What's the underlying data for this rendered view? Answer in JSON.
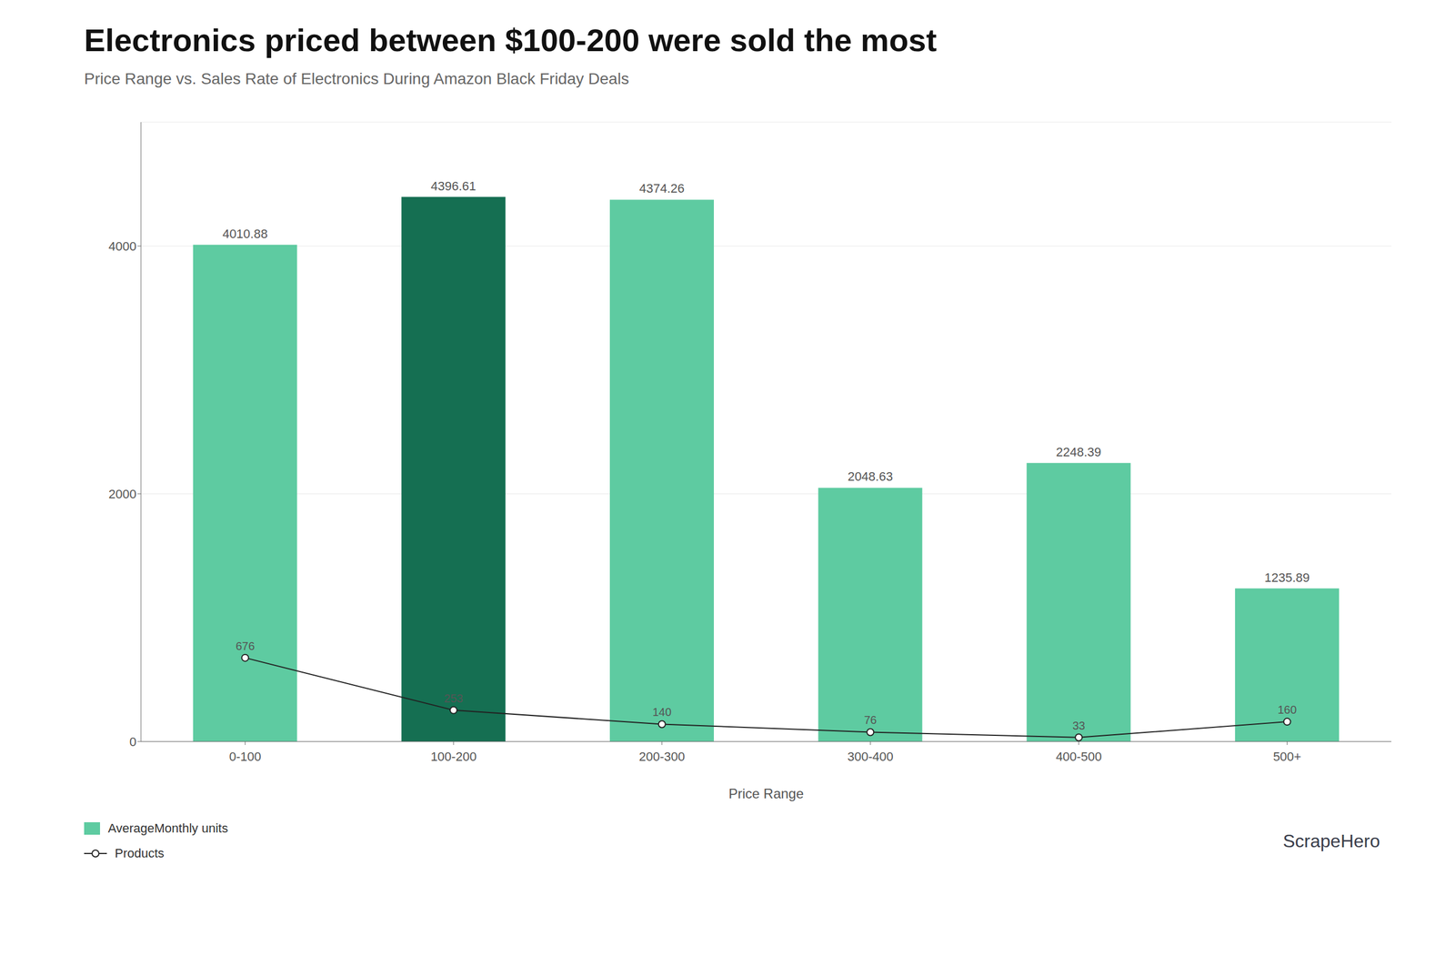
{
  "chart_data": {
    "type": "bar",
    "title": "Electronics priced between $100-200 were sold the most",
    "subtitle": "Price Range vs. Sales Rate of  Electronics During Amazon Black Friday Deals",
    "x_label": "Price Range",
    "categories": [
      "0-100",
      "100-200",
      "200-300",
      "300-400",
      "400-500",
      "500+"
    ],
    "series": [
      {
        "name": "AverageMonthly units",
        "type": "bar",
        "color": "#5ecba1",
        "colors": [
          "#5ecba1",
          "#156f52",
          "#5ecba1",
          "#5ecba1",
          "#5ecba1",
          "#5ecba1"
        ],
        "values": [
          4010.88,
          4396.61,
          4374.26,
          2048.63,
          2248.39,
          1235.89
        ],
        "data_labels": true
      },
      {
        "name": "Products",
        "type": "line",
        "color": "#222222",
        "marker": "circle",
        "values": [
          676,
          253,
          140,
          76,
          33,
          160
        ],
        "data_labels": true
      }
    ],
    "ylim": [
      0,
      5000
    ],
    "yticks": [
      0,
      2000,
      4000
    ],
    "grid": true,
    "legend": "lower left",
    "annotations": [
      "ScrapeHero"
    ]
  }
}
